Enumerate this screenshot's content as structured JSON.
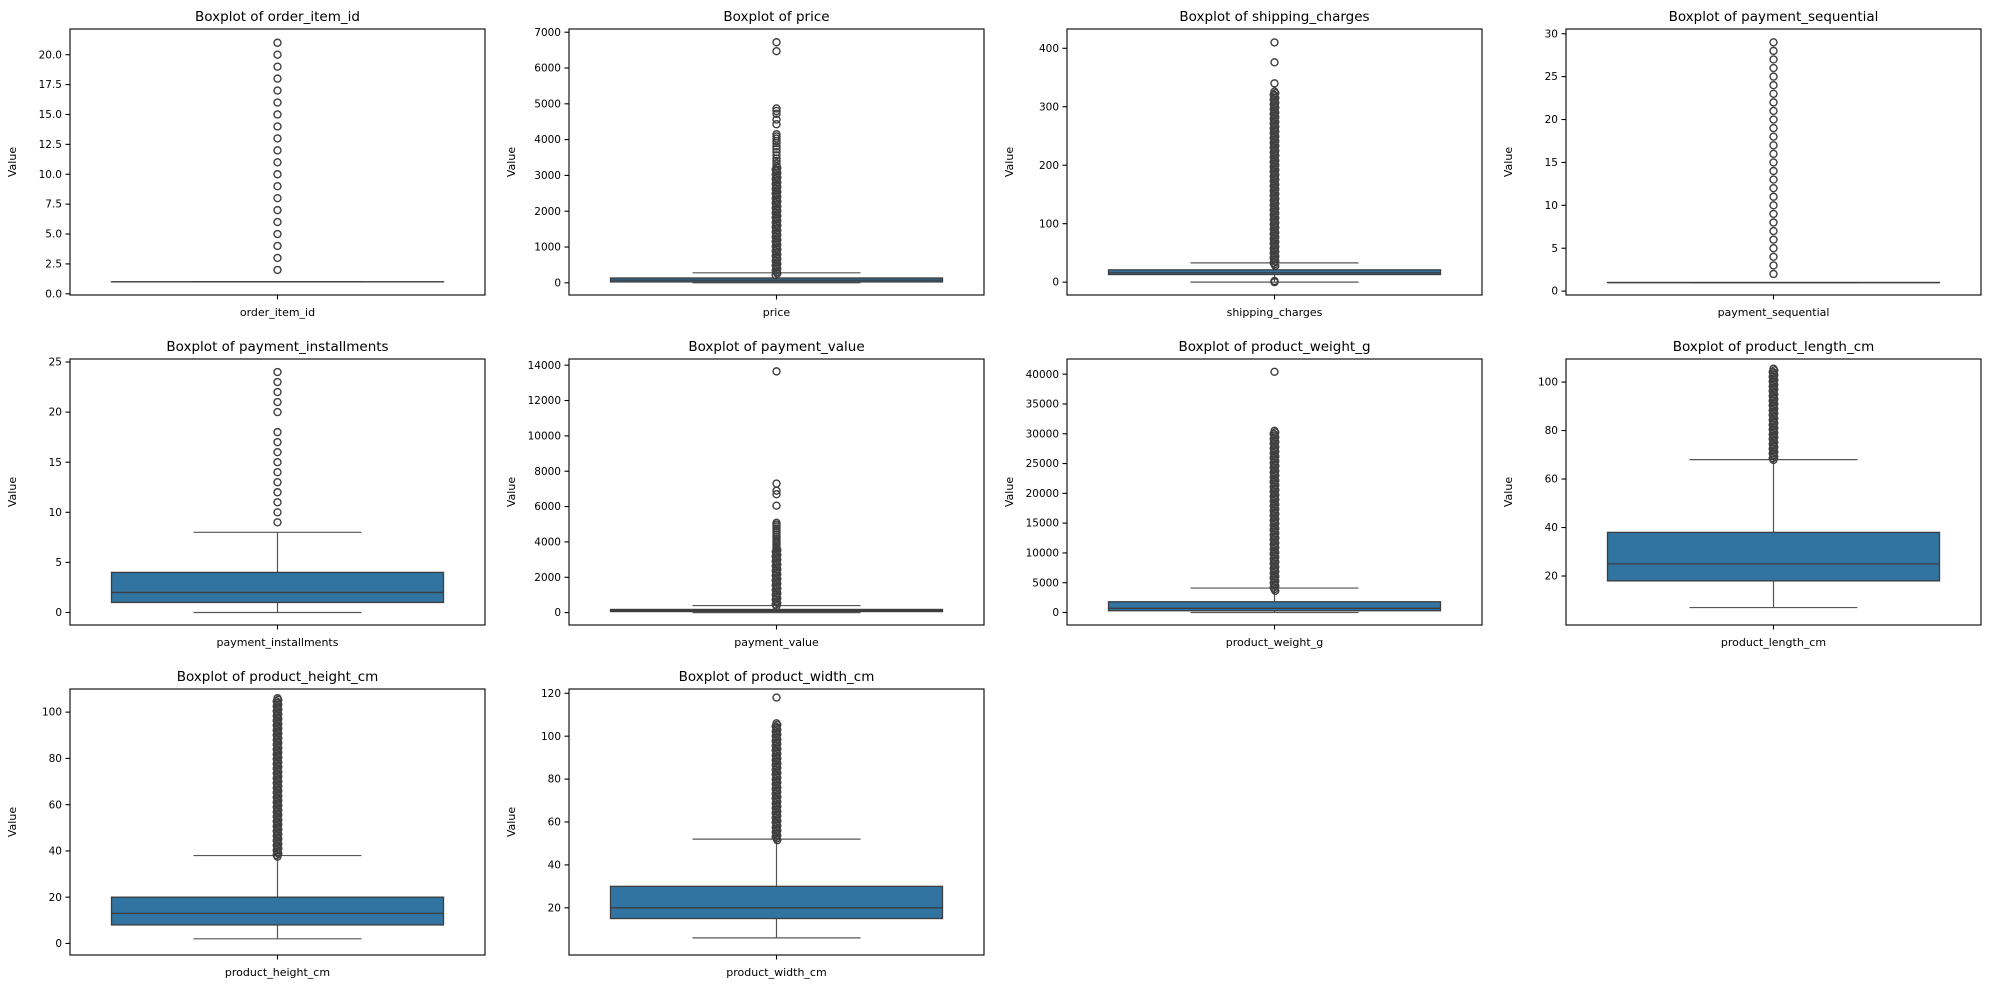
{
  "figure": {
    "name": "numeric-feature-boxplots",
    "background": "#ffffff"
  },
  "colors": {
    "box_fill": "#3274a1",
    "box_edge": "#3d3d3d",
    "median": "#3d3d3d",
    "whisker": "#555555",
    "outlier": "#3f3f3f",
    "axes_edge": "#000000",
    "text": "#000000"
  },
  "grid_layout": {
    "columns": 4,
    "rows": 3,
    "filled_cells": 10
  },
  "chart_data": [
    {
      "type": "boxplot",
      "title": "Boxplot of order_item_id",
      "xlabel": "order_item_id",
      "ylabel": "Value",
      "ylim": [
        -0.1,
        22.15
      ],
      "yticks": [
        0,
        2.5,
        5,
        7.5,
        10,
        12.5,
        15,
        17.5,
        20
      ],
      "ytick_labels": [
        "0.0",
        "2.5",
        "5.0",
        "7.5",
        "10.0",
        "12.5",
        "15.0",
        "17.5",
        "20.0"
      ],
      "box": {
        "whisker_low": 1,
        "q1": 1,
        "median": 1,
        "q3": 1,
        "whisker_high": 1
      },
      "outlier_band": null,
      "outliers": [
        2,
        3,
        4,
        5,
        6,
        7,
        8,
        9,
        10,
        11,
        12,
        13,
        14,
        15,
        16,
        17,
        18,
        19,
        20,
        21
      ]
    },
    {
      "type": "boxplot",
      "title": "Boxplot of price",
      "xlabel": "price",
      "ylabel": "Value",
      "ylim": [
        -340,
        7090
      ],
      "yticks": [
        0,
        1000,
        2000,
        3000,
        4000,
        5000,
        6000,
        7000
      ],
      "ytick_labels": [
        "0",
        "1000",
        "2000",
        "3000",
        "4000",
        "5000",
        "6000",
        "7000"
      ],
      "box": {
        "whisker_low": 0,
        "q1": 25,
        "median": 75,
        "q3": 135,
        "whisker_high": 280
      },
      "outlier_band": [
        185,
        3255
      ],
      "outliers": [
        3330,
        3400,
        3470,
        3560,
        3650,
        3730,
        3810,
        3900,
        3960,
        4030,
        4090,
        4150,
        4430,
        4560,
        4720,
        4800,
        4870,
        6470,
        6720
      ]
    },
    {
      "type": "boxplot",
      "title": "Boxplot of shipping_charges",
      "xlabel": "shipping_charges",
      "ylabel": "Value",
      "ylim": [
        -22,
        433
      ],
      "yticks": [
        0,
        100,
        200,
        300,
        400
      ],
      "ytick_labels": [
        "0",
        "100",
        "200",
        "300",
        "400"
      ],
      "box": {
        "whisker_low": 0,
        "q1": 13,
        "median": 16,
        "q3": 21,
        "whisker_high": 33
      },
      "outlier_band": [
        26,
        326
      ],
      "outliers": [
        0,
        1,
        2,
        340,
        376,
        410
      ]
    },
    {
      "type": "boxplot",
      "title": "Boxplot of payment_sequential",
      "xlabel": "payment_sequential",
      "ylabel": "Value",
      "ylim": [
        -0.45,
        30.55
      ],
      "yticks": [
        0,
        5,
        10,
        15,
        20,
        25,
        30
      ],
      "ytick_labels": [
        "0",
        "5",
        "10",
        "15",
        "20",
        "25",
        "30"
      ],
      "box": {
        "whisker_low": 1,
        "q1": 1,
        "median": 1,
        "q3": 1,
        "whisker_high": 1
      },
      "outlier_band": null,
      "outliers": [
        2,
        3,
        4,
        5,
        6,
        7,
        8,
        9,
        10,
        11,
        12,
        13,
        14,
        15,
        16,
        17,
        18,
        19,
        20,
        21,
        22,
        23,
        24,
        25,
        26,
        27,
        28,
        29
      ]
    },
    {
      "type": "boxplot",
      "title": "Boxplot of payment_installments",
      "xlabel": "payment_installments",
      "ylabel": "Value",
      "ylim": [
        -1.25,
        25.3
      ],
      "yticks": [
        0,
        5,
        10,
        15,
        20,
        25
      ],
      "ytick_labels": [
        "0",
        "5",
        "10",
        "15",
        "20",
        "25"
      ],
      "box": {
        "whisker_low": 0,
        "q1": 1,
        "median": 2,
        "q3": 4,
        "whisker_high": 8
      },
      "outlier_band": null,
      "outliers": [
        9,
        10,
        11,
        12,
        13,
        14,
        15,
        16,
        17,
        18,
        20,
        21,
        22,
        23,
        24
      ]
    },
    {
      "type": "boxplot",
      "title": "Boxplot of payment_value",
      "xlabel": "payment_value",
      "ylabel": "Value",
      "ylim": [
        -700,
        14350
      ],
      "yticks": [
        0,
        2000,
        4000,
        6000,
        8000,
        10000,
        12000,
        14000
      ],
      "ytick_labels": [
        "0",
        "2000",
        "4000",
        "6000",
        "8000",
        "10000",
        "12000",
        "14000"
      ],
      "box": {
        "whisker_low": 0,
        "q1": 60,
        "median": 110,
        "q3": 180,
        "whisker_high": 400
      },
      "outlier_band": [
        300,
        3630
      ],
      "outliers": [
        3700,
        3790,
        3880,
        3970,
        4060,
        4160,
        4280,
        4400,
        4520,
        4640,
        4760,
        4880,
        4980,
        5080,
        6050,
        6700,
        6900,
        7300,
        13650
      ]
    },
    {
      "type": "boxplot",
      "title": "Boxplot of product_weight_g",
      "xlabel": "product_weight_g",
      "ylabel": "Value",
      "ylim": [
        -2100,
        42550
      ],
      "yticks": [
        0,
        5000,
        10000,
        15000,
        20000,
        25000,
        30000,
        35000,
        40000
      ],
      "ytick_labels": [
        "0",
        "5000",
        "10000",
        "15000",
        "20000",
        "25000",
        "30000",
        "35000",
        "40000"
      ],
      "box": {
        "whisker_low": 0,
        "q1": 300,
        "median": 700,
        "q3": 1800,
        "whisker_high": 4100
      },
      "outlier_band": [
        3450,
        30500
      ],
      "outliers": [
        40400
      ]
    },
    {
      "type": "boxplot",
      "title": "Boxplot of product_length_cm",
      "xlabel": "product_length_cm",
      "ylabel": "Value",
      "ylim": [
        -0.2,
        109.5
      ],
      "yticks": [
        20,
        40,
        60,
        80,
        100
      ],
      "ytick_labels": [
        "20",
        "40",
        "60",
        "80",
        "100"
      ],
      "box": {
        "whisker_low": 7,
        "q1": 18,
        "median": 25,
        "q3": 38,
        "whisker_high": 68
      },
      "outlier_band": [
        67.5,
        105.5
      ],
      "outliers": []
    },
    {
      "type": "boxplot",
      "title": "Boxplot of product_height_cm",
      "xlabel": "product_height_cm",
      "ylabel": "Value",
      "ylim": [
        -5,
        110
      ],
      "yticks": [
        0,
        20,
        40,
        60,
        80,
        100
      ],
      "ytick_labels": [
        "0",
        "20",
        "40",
        "60",
        "80",
        "100"
      ],
      "box": {
        "whisker_low": 2,
        "q1": 8,
        "median": 13,
        "q3": 20,
        "whisker_high": 38
      },
      "outlier_band": [
        37.5,
        106
      ],
      "outliers": []
    },
    {
      "type": "boxplot",
      "title": "Boxplot of product_width_cm",
      "xlabel": "product_width_cm",
      "ylabel": "Value",
      "ylim": [
        -2,
        122
      ],
      "yticks": [
        20,
        40,
        60,
        80,
        100,
        120
      ],
      "ytick_labels": [
        "20",
        "40",
        "60",
        "80",
        "100",
        "120"
      ],
      "box": {
        "whisker_low": 6,
        "q1": 15,
        "median": 20,
        "q3": 30,
        "whisker_high": 52
      },
      "outlier_band": [
        51.5,
        106
      ],
      "outliers": [
        118
      ]
    }
  ]
}
